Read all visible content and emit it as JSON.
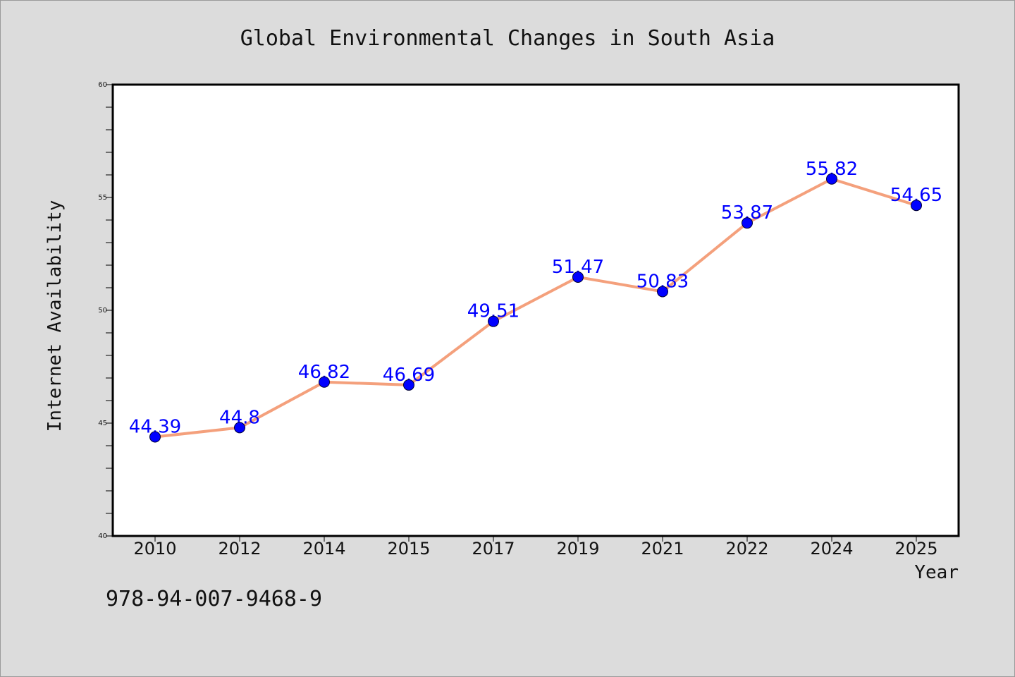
{
  "colors": {
    "background": "#dcdcdc",
    "plot_background": "#ffffff",
    "line": "#f4a07c",
    "marker": "#0000ff",
    "data_label": "#0000ff",
    "text": "#111111"
  },
  "footer": {
    "isbn": "978-94-007-9468-9"
  },
  "chart_data": {
    "type": "line",
    "title": "Global Environmental Changes in South Asia",
    "xlabel": "Year",
    "ylabel": "Internet Availability",
    "categories": [
      "2010",
      "2012",
      "2014",
      "2015",
      "2017",
      "2019",
      "2021",
      "2022",
      "2024",
      "2025"
    ],
    "series": [
      {
        "values": [
          44.39,
          44.8,
          46.82,
          46.69,
          49.51,
          51.47,
          50.83,
          53.87,
          55.82,
          54.65
        ],
        "labels": [
          "44.39",
          "44.8",
          "46.82",
          "46.69",
          "49.51",
          "51.47",
          "50.83",
          "53.87",
          "55.82",
          "54.65"
        ]
      }
    ],
    "ylim": [
      40,
      60
    ],
    "yticks": [
      "40",
      "45",
      "50",
      "55",
      "60"
    ],
    "y_minor_step": 1,
    "grid": false,
    "legend": "none"
  }
}
